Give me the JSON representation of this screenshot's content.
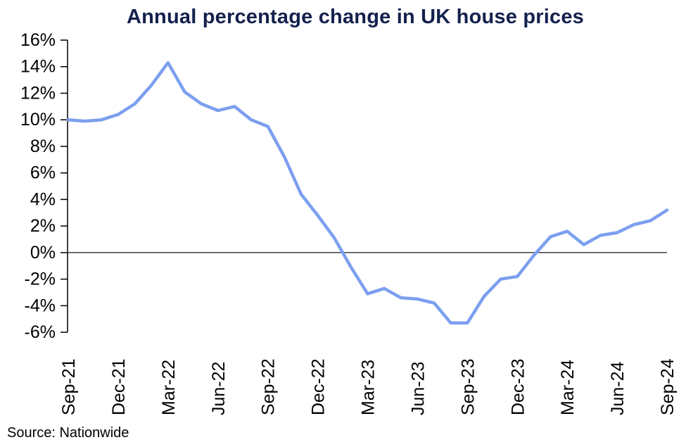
{
  "source": "Source: Nationwide",
  "chart_data": {
    "type": "line",
    "title": "Annual percentage change in UK house prices",
    "xlabel": "",
    "ylabel": "",
    "x": [
      "Sep-21",
      "Oct-21",
      "Nov-21",
      "Dec-21",
      "Jan-22",
      "Feb-22",
      "Mar-22",
      "Apr-22",
      "May-22",
      "Jun-22",
      "Jul-22",
      "Aug-22",
      "Sep-22",
      "Oct-22",
      "Nov-22",
      "Dec-22",
      "Jan-23",
      "Feb-23",
      "Mar-23",
      "Apr-23",
      "May-23",
      "Jun-23",
      "Jul-23",
      "Aug-23",
      "Sep-23",
      "Oct-23",
      "Nov-23",
      "Dec-23",
      "Jan-24",
      "Feb-24",
      "Mar-24",
      "Apr-24",
      "May-24",
      "Jun-24",
      "Jul-24",
      "Aug-24",
      "Sep-24"
    ],
    "values": [
      10.0,
      9.9,
      10.0,
      10.4,
      11.2,
      12.6,
      14.3,
      12.1,
      11.2,
      10.7,
      11.0,
      10.0,
      9.5,
      7.2,
      4.4,
      2.8,
      1.1,
      -1.1,
      -3.1,
      -2.7,
      -3.4,
      -3.5,
      -3.8,
      -5.3,
      -5.3,
      -3.3,
      -2.0,
      -1.8,
      -0.2,
      1.2,
      1.6,
      0.6,
      1.3,
      1.5,
      2.1,
      2.4,
      3.2
    ],
    "series_name": "Annual percentage change",
    "ylim": [
      -6,
      16
    ],
    "ytick_step": 2,
    "ytick_suffix": "%",
    "x_tick_every": 3,
    "x_tick_labels_shown": [
      "Sep-21",
      "Dec-21",
      "Mar-22",
      "Jun-22",
      "Sep-22",
      "Dec-22",
      "Mar-23",
      "Jun-23",
      "Sep-23",
      "Dec-23",
      "Mar-24",
      "Jun-24",
      "Sep-24"
    ],
    "grid": "off",
    "legend": "none",
    "zero_line": true,
    "line_color": "#7C9FEF",
    "axis_color": "#000000",
    "title_color": "#14214E"
  }
}
